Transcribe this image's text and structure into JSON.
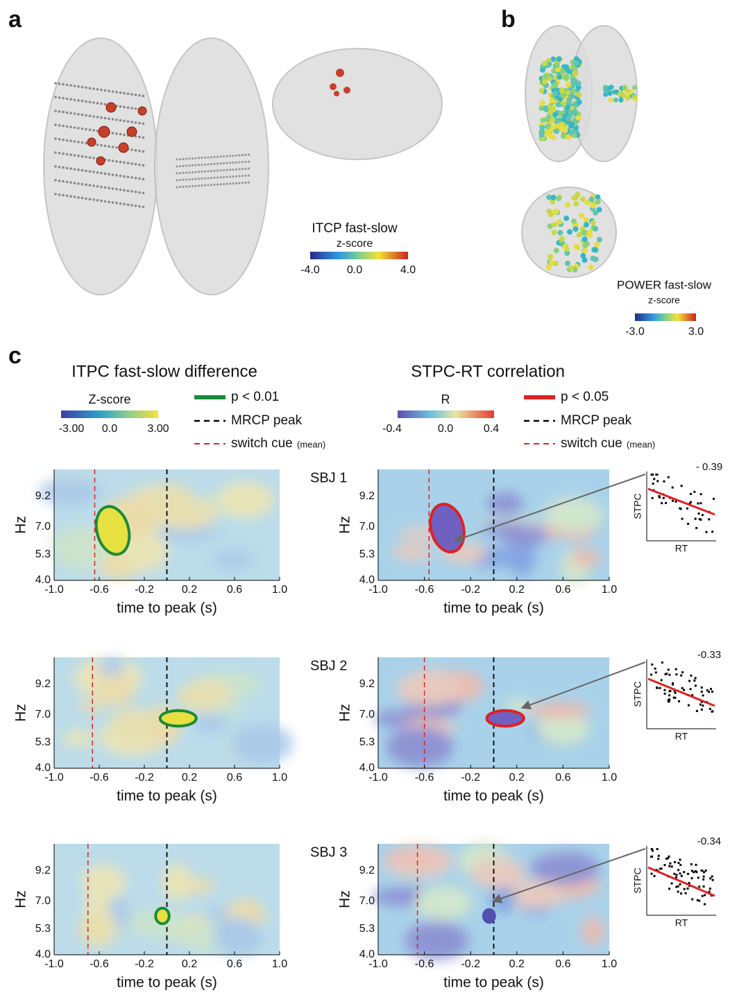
{
  "panel_a": {
    "label": "a",
    "colorbar": {
      "title": "ITCP fast-slow",
      "subtitle": "z-score",
      "ticks": [
        "-4.0",
        "0.0",
        "4.0"
      ]
    }
  },
  "panel_b": {
    "label": "b",
    "colorbar": {
      "title": "POWER fast-slow",
      "subtitle": "z-score",
      "ticks": [
        "-3.0",
        "3.0"
      ]
    }
  },
  "panel_c": {
    "label": "c",
    "left": {
      "title": "ITPC fast-slow difference",
      "colorbar": {
        "title": "Z-score",
        "ticks": [
          "-3.00",
          "0.0",
          "3.00"
        ]
      },
      "legend": {
        "sig": "p < 0.01",
        "peak": "MRCP peak",
        "cue": "switch cue",
        "cue_note": "(mean)"
      }
    },
    "right": {
      "title": "STPC-RT correlation",
      "colorbar": {
        "title": "R",
        "ticks": [
          "-0.4",
          "0.0",
          "0.4"
        ]
      },
      "legend": {
        "sig": "p < 0.05",
        "peak": "MRCP peak",
        "cue": "switch cue",
        "cue_note": "(mean)"
      }
    },
    "heatmap_axes": {
      "ylabel": "Hz",
      "yticks": [
        "9.2",
        "7.0",
        "5.3",
        "4.0"
      ],
      "xticks": [
        "-1.0",
        "-0.6",
        "-0.2",
        "0.2",
        "0.6",
        "1.0"
      ],
      "xlabel": "time to peak (s)"
    },
    "subjects": [
      {
        "label": "SBJ 1",
        "r": "- 0.39"
      },
      {
        "label": "SBJ 2",
        "r": "-0.33"
      },
      {
        "label": "SBJ 3",
        "r": "-0.34"
      }
    ],
    "scatter": {
      "ylabel": "STPC",
      "xlabel": "RT"
    }
  }
}
